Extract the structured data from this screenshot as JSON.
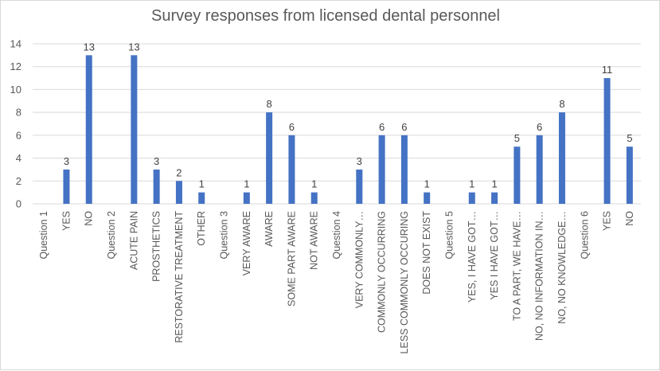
{
  "chart_data": {
    "type": "bar",
    "title": "Survey responses from licensed dental personnel",
    "xlabel": "",
    "ylabel": "",
    "ylim": [
      0,
      14
    ],
    "yticks": [
      0,
      2,
      4,
      6,
      8,
      10,
      12,
      14
    ],
    "grid": true,
    "legend": "none",
    "bar_color": "#4472C4",
    "categories": [
      "Question 1",
      "YES",
      "NO",
      "Question 2",
      "ACUTE PAIN",
      "PROSTHETICS",
      "RESTORATIVE TREATMENT",
      "OTHER",
      "Question 3",
      "VERY AWARE",
      "AWARE",
      "SOME PART AWARE",
      "NOT AWARE",
      "Question 4",
      "VERY COMMONLY…",
      "COMMONLY OCCURRING",
      "LESS COMMONLY OCCURING",
      "DOES NOT EXIST",
      "Question 5",
      "YES, I HAVE GOT…",
      "YES I HAVE GOT…",
      "TO A PART, WE HAVE…",
      "NO, NO INFORMATION IN…",
      "NO, NO KNOWLEDGE…",
      "Question 6",
      "YES",
      "NO"
    ],
    "values": [
      null,
      3,
      13,
      null,
      13,
      3,
      2,
      1,
      null,
      1,
      8,
      6,
      1,
      null,
      3,
      6,
      6,
      1,
      null,
      1,
      1,
      5,
      6,
      8,
      null,
      11,
      5
    ]
  }
}
